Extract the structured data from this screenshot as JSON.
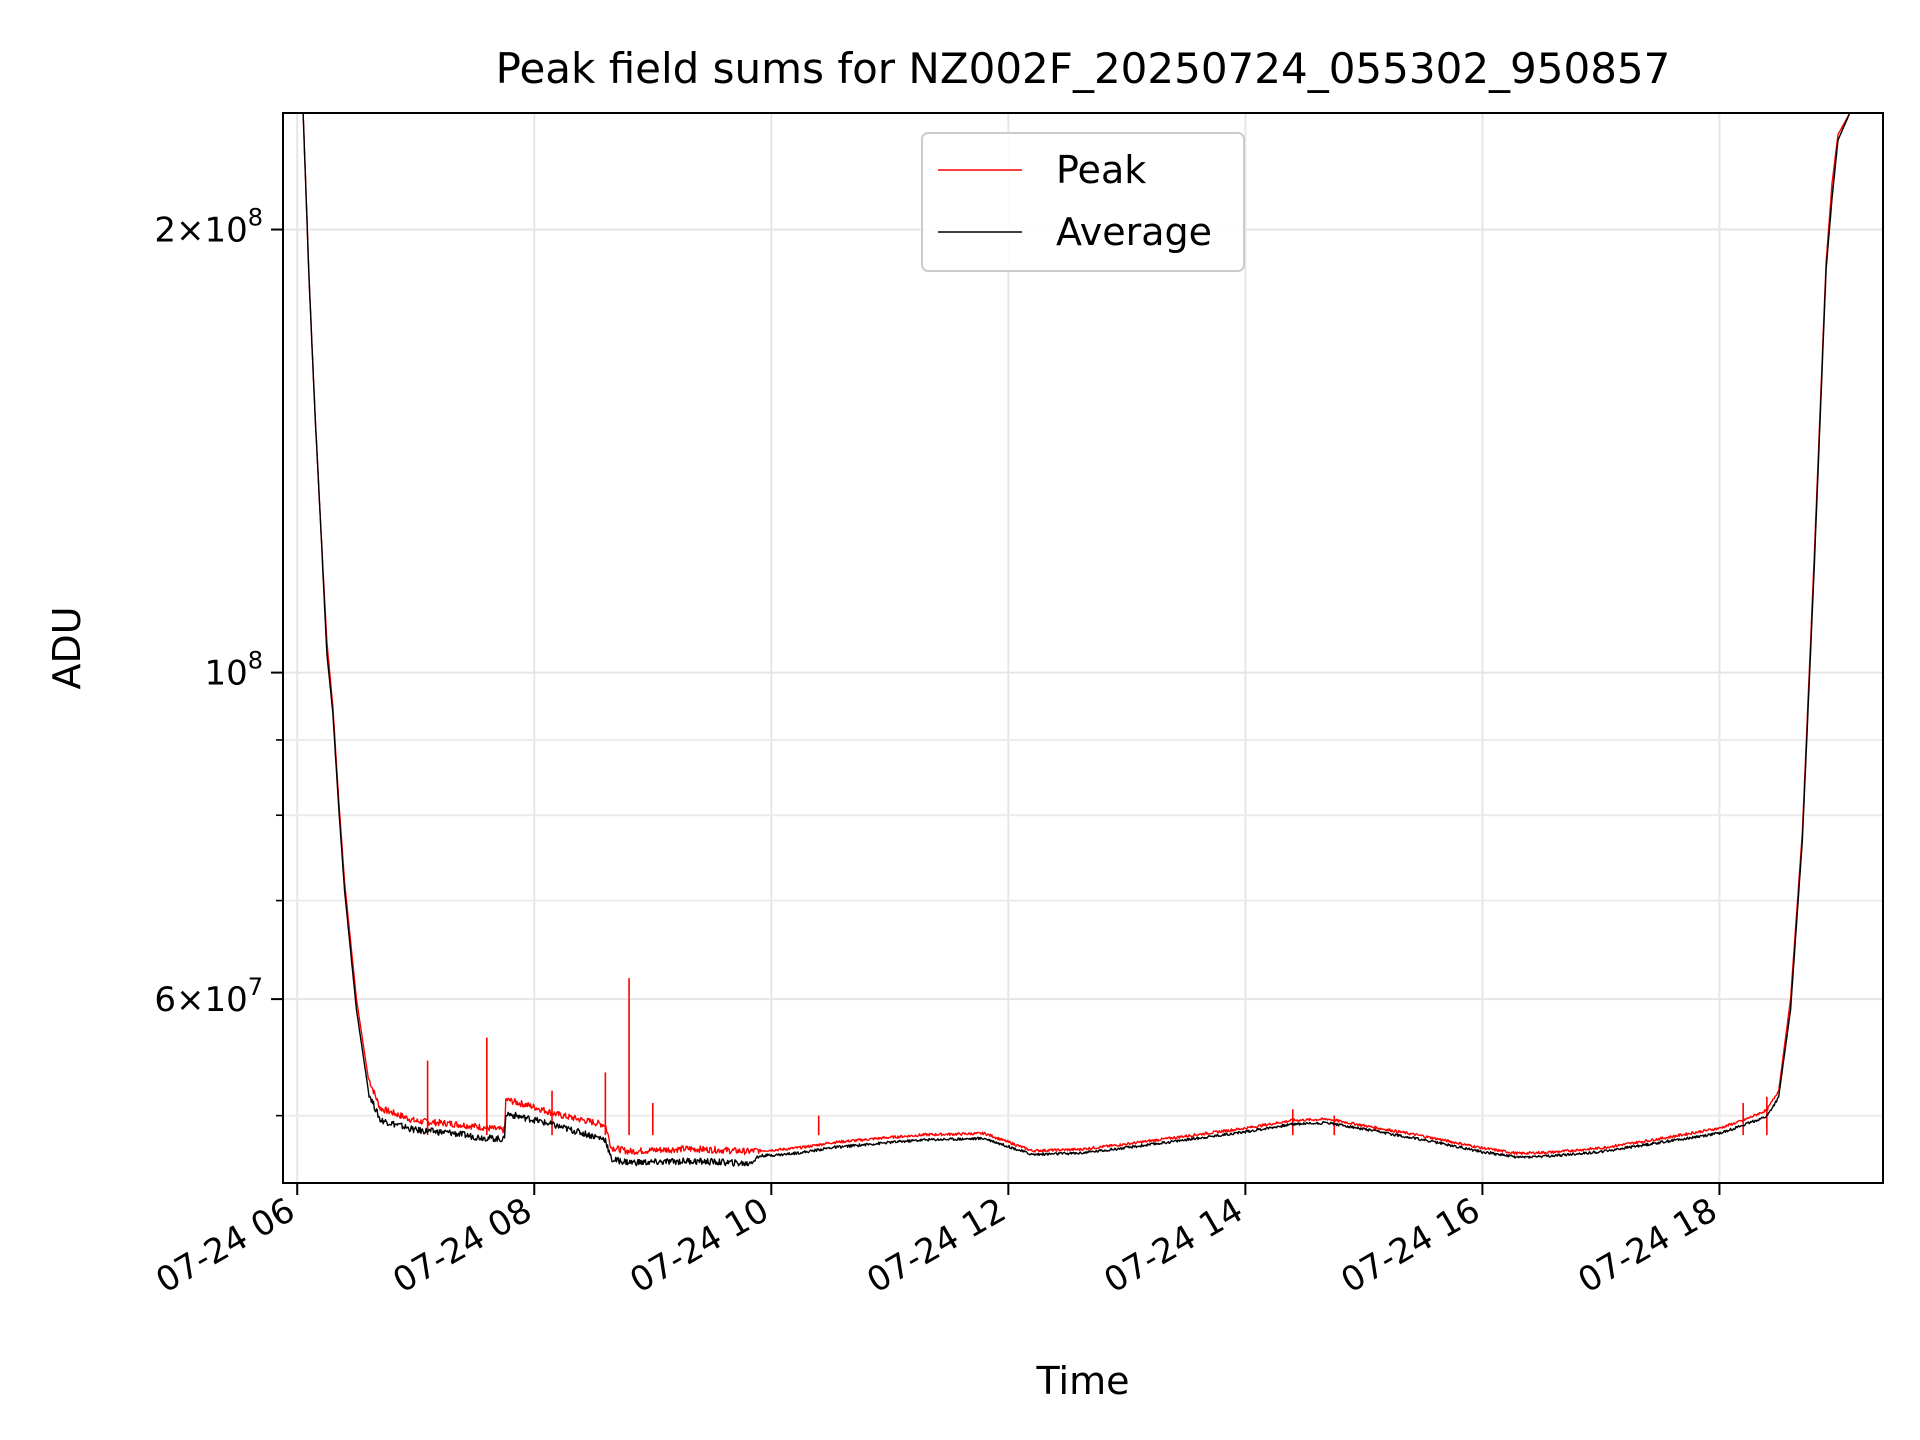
{
  "chart_data": {
    "type": "line",
    "title": "Peak field sums for NZ002F_20250724_055302_950857",
    "xlabel": "Time",
    "ylabel": "ADU",
    "xlim_hours": [
      5.88,
      19.38
    ],
    "ylim": [
      45000000,
      240000000
    ],
    "y_scale": "log",
    "grid": true,
    "legend": {
      "position": "upper-center",
      "entries": [
        "Peak",
        "Average"
      ]
    },
    "x_ticks": [
      {
        "hour": 6,
        "label": "07-24 06"
      },
      {
        "hour": 8,
        "label": "07-24 08"
      },
      {
        "hour": 10,
        "label": "07-24 10"
      },
      {
        "hour": 12,
        "label": "07-24 12"
      },
      {
        "hour": 14,
        "label": "07-24 14"
      },
      {
        "hour": 16,
        "label": "07-24 16"
      },
      {
        "hour": 18,
        "label": "07-24 18"
      }
    ],
    "y_major_ticks": [
      {
        "value": 200000000,
        "mant": "2×10",
        "exp": "8"
      },
      {
        "value": 100000000,
        "mant": "10",
        "exp": "8"
      },
      {
        "value": 60000000,
        "mant": "6×10",
        "exp": "7"
      }
    ],
    "y_minor_ticks": [
      50000000,
      70000000,
      80000000,
      90000000
    ],
    "series": [
      {
        "name": "Peak",
        "color": "#ff0000",
        "x_hours": [
          5.88,
          6.05,
          6.1,
          6.15,
          6.2,
          6.25,
          6.3,
          6.35,
          6.4,
          6.5,
          6.6,
          6.7,
          7.0,
          7.3,
          7.5,
          7.75,
          7.76,
          8.0,
          8.2,
          8.4,
          8.6,
          8.65,
          8.8,
          9.0,
          9.3,
          9.6,
          9.8,
          9.9,
          10.1,
          10.3,
          10.5,
          11.0,
          11.3,
          11.8,
          12.2,
          12.6,
          13.0,
          13.5,
          14.0,
          14.4,
          14.7,
          15.0,
          15.5,
          16.0,
          16.3,
          16.6,
          17.0,
          17.5,
          18.0,
          18.2,
          18.4,
          18.5,
          18.6,
          18.7,
          18.8,
          18.9,
          18.95,
          19.0,
          19.1,
          19.2,
          19.38
        ],
        "values": [
          240000000,
          240000000,
          185000000,
          150000000,
          125000000,
          105000000,
          95000000,
          82000000,
          72000000,
          60000000,
          53000000,
          50500000,
          49500000,
          49300000,
          49100000,
          48800000,
          51200000,
          50600000,
          50000000,
          49600000,
          49200000,
          47500000,
          47200000,
          47300000,
          47400000,
          47300000,
          47200000,
          47300000,
          47400000,
          47600000,
          47900000,
          48300000,
          48500000,
          48600000,
          47300000,
          47400000,
          47800000,
          48400000,
          49000000,
          49600000,
          49700000,
          49200000,
          48400000,
          47500000,
          47100000,
          47200000,
          47500000,
          48200000,
          49000000,
          49600000,
          50400000,
          52000000,
          60000000,
          78000000,
          120000000,
          190000000,
          215000000,
          232000000,
          240000000,
          240000000,
          240000000
        ],
        "spikes": [
          {
            "hour": 7.1,
            "value": 54500000
          },
          {
            "hour": 7.6,
            "value": 56500000
          },
          {
            "hour": 8.6,
            "value": 53500000
          },
          {
            "hour": 8.8,
            "value": 62000000
          },
          {
            "hour": 9.0,
            "value": 51000000
          },
          {
            "hour": 8.15,
            "value": 52000000
          },
          {
            "hour": 10.4,
            "value": 50000000
          },
          {
            "hour": 14.4,
            "value": 50500000
          },
          {
            "hour": 14.75,
            "value": 50000000
          },
          {
            "hour": 18.2,
            "value": 51000000
          },
          {
            "hour": 18.4,
            "value": 51500000
          }
        ]
      },
      {
        "name": "Average",
        "color": "#000000",
        "x_hours": [
          5.88,
          6.05,
          6.1,
          6.15,
          6.2,
          6.25,
          6.3,
          6.35,
          6.4,
          6.5,
          6.6,
          6.7,
          7.0,
          7.3,
          7.5,
          7.75,
          7.76,
          8.0,
          8.2,
          8.4,
          8.6,
          8.65,
          8.8,
          9.0,
          9.3,
          9.6,
          9.8,
          9.9,
          10.1,
          10.3,
          10.5,
          11.0,
          11.3,
          11.8,
          12.2,
          12.6,
          13.0,
          13.5,
          14.0,
          14.4,
          14.7,
          15.0,
          15.5,
          16.0,
          16.3,
          16.6,
          17.0,
          17.5,
          18.0,
          18.2,
          18.4,
          18.5,
          18.6,
          18.7,
          18.8,
          18.9,
          18.95,
          19.0,
          19.1,
          19.2,
          19.38
        ],
        "values": [
          240000000,
          240000000,
          185000000,
          150000000,
          125000000,
          103000000,
          94000000,
          81000000,
          71000000,
          59000000,
          52000000,
          49800000,
          49000000,
          48800000,
          48500000,
          48300000,
          50300000,
          49800000,
          49300000,
          48800000,
          48300000,
          46800000,
          46600000,
          46600000,
          46700000,
          46600000,
          46500000,
          47000000,
          47100000,
          47300000,
          47600000,
          48000000,
          48200000,
          48300000,
          47100000,
          47200000,
          47600000,
          48200000,
          48800000,
          49400000,
          49500000,
          49000000,
          48200000,
          47300000,
          46900000,
          47000000,
          47300000,
          48000000,
          48700000,
          49300000,
          50000000,
          51500000,
          59000000,
          77000000,
          118000000,
          188000000,
          210000000,
          230000000,
          240000000,
          240000000,
          240000000
        ]
      }
    ]
  }
}
